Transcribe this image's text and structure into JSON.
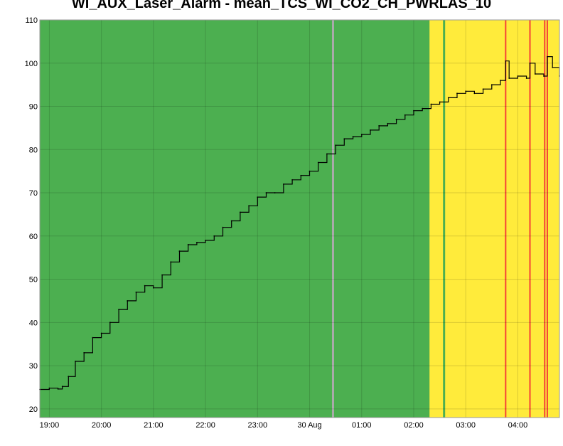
{
  "chart_data": {
    "type": "line",
    "title": "WI_AUX_Laser_Alarm - mean_TCS_WI_CO2_CH_PWRLAS_10",
    "xlabel": "",
    "ylabel": "",
    "ylim": [
      18,
      110
    ],
    "yticks": [
      20,
      30,
      40,
      50,
      60,
      70,
      80,
      90,
      100,
      110
    ],
    "xlim": [
      "18:49",
      "04:48"
    ],
    "xticks": [
      "19:00",
      "20:00",
      "21:00",
      "22:00",
      "23:00",
      "30 Aug",
      "01:00",
      "02:00",
      "03:00",
      "04:00"
    ],
    "grid": true,
    "colors": {
      "ok": "#4caf50",
      "warning": "#ffeb3b",
      "alarm": "#f44336",
      "unknown": "#aaaaaa",
      "trace": "#000000"
    },
    "state_bands": [
      {
        "state": "ok",
        "start": "18:49",
        "end": "02:16"
      },
      {
        "state": "warning",
        "start": "02:16",
        "end": "04:48"
      }
    ],
    "state_markers": [
      {
        "state": "unknown",
        "time": "00:27"
      },
      {
        "state": "ok",
        "time": "02:17"
      },
      {
        "state": "ok",
        "time": "02:35"
      },
      {
        "state": "alarm",
        "time": "03:46"
      },
      {
        "state": "alarm",
        "time": "04:14"
      },
      {
        "state": "alarm",
        "time": "04:31"
      },
      {
        "state": "alarm",
        "time": "04:34"
      }
    ],
    "series": [
      {
        "x": [
          "18:49",
          "19:00",
          "19:10",
          "19:15",
          "19:22",
          "19:30",
          "19:40",
          "19:50",
          "20:00",
          "20:10",
          "20:20",
          "20:30",
          "20:40",
          "20:50",
          "21:00",
          "21:10",
          "21:20",
          "21:30",
          "21:40",
          "21:50",
          "22:00",
          "22:10",
          "22:20",
          "22:30",
          "22:40",
          "22:50",
          "23:00",
          "23:10",
          "23:20",
          "23:30",
          "23:40",
          "23:50",
          "00:00",
          "00:10",
          "00:20",
          "00:30",
          "00:40",
          "00:50",
          "01:00",
          "01:10",
          "01:20",
          "01:30",
          "01:40",
          "01:50",
          "02:00",
          "02:10",
          "02:20",
          "02:30",
          "02:40",
          "02:50",
          "03:00",
          "03:10",
          "03:20",
          "03:30",
          "03:40",
          "03:46",
          "03:50",
          "04:00",
          "04:10",
          "04:14",
          "04:20",
          "04:30",
          "04:34",
          "04:40",
          "04:48"
        ],
        "y": [
          24.5,
          24.8,
          24.6,
          25.2,
          27.5,
          31.0,
          33.0,
          36.5,
          37.5,
          40.0,
          43.0,
          45.0,
          47.0,
          48.5,
          48.0,
          51.0,
          54.0,
          56.5,
          58.0,
          58.5,
          59.0,
          60.0,
          62.0,
          63.5,
          65.5,
          67.0,
          69.0,
          70.0,
          70.0,
          72.0,
          73.0,
          74.0,
          75.0,
          77.0,
          79.0,
          81.0,
          82.5,
          83.0,
          83.5,
          84.5,
          85.5,
          86.0,
          87.0,
          88.0,
          89.0,
          89.5,
          90.5,
          91.0,
          92.0,
          93.0,
          93.5,
          93.0,
          94.0,
          95.0,
          96.0,
          100.5,
          96.5,
          97.0,
          96.5,
          100.0,
          97.5,
          97.0,
          101.5,
          99.0,
          97.0
        ]
      }
    ]
  }
}
